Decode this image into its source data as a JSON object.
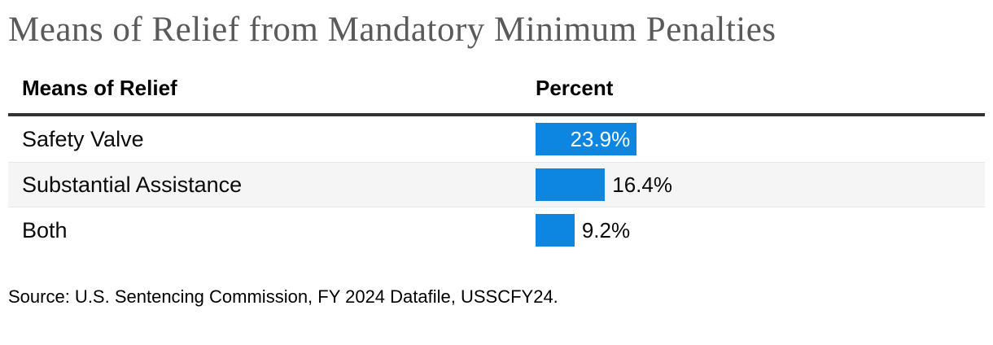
{
  "title": "Means of Relief from Mandatory Minimum Penalties",
  "source": "Source: U.S. Sentencing Commission, FY 2024 Datafile, USSCFY24.",
  "colors": {
    "bar": "#0d86e2",
    "title_text": "#5a5a5a",
    "header_rule": "#333333",
    "row_stripe": "#f5f5f5"
  },
  "chart_data": {
    "type": "bar",
    "orientation": "horizontal",
    "title": "Means of Relief from Mandatory Minimum Penalties",
    "columns": [
      "Means of Relief",
      "Percent"
    ],
    "categories": [
      "Safety Valve",
      "Substantial Assistance",
      "Both"
    ],
    "values": [
      23.9,
      16.4,
      9.2
    ],
    "value_labels": [
      "23.9%",
      "16.4%",
      "9.2%"
    ],
    "xlim": [
      0,
      100
    ],
    "grid": false,
    "legend": false,
    "zebra_striping": true,
    "value_label_position_rule": "inside-bar when bar is wide, otherwise right of bar"
  }
}
